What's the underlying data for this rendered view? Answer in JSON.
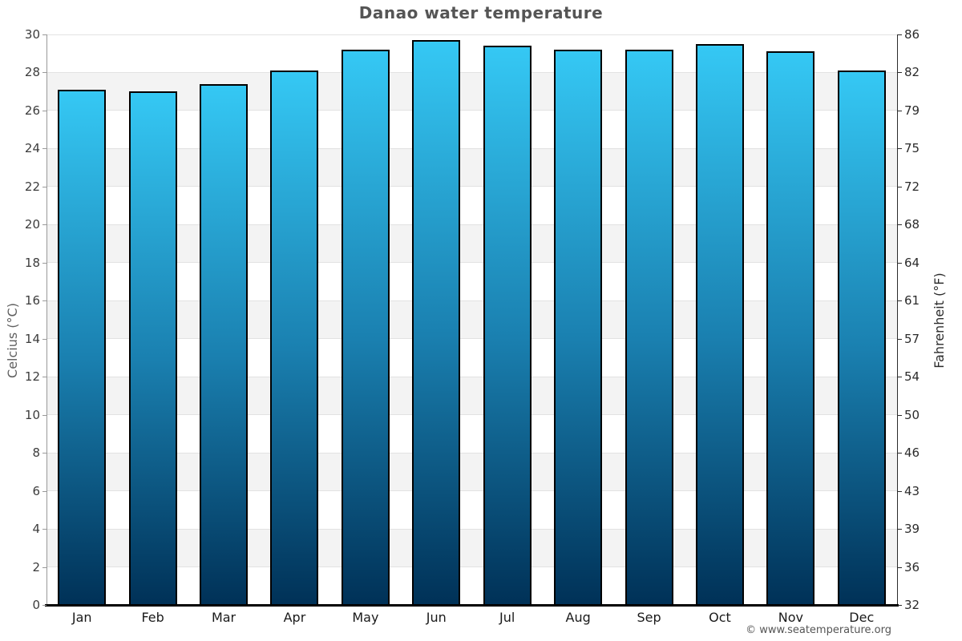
{
  "title": "Danao water temperature",
  "footer": "© www.seatemperature.org",
  "chart_data": {
    "type": "bar",
    "title": "Danao water temperature",
    "categories": [
      "Jan",
      "Feb",
      "Mar",
      "Apr",
      "May",
      "Jun",
      "Jul",
      "Aug",
      "Sep",
      "Oct",
      "Nov",
      "Dec"
    ],
    "values": [
      27.1,
      27.0,
      27.4,
      28.1,
      29.2,
      29.7,
      29.4,
      29.2,
      29.2,
      29.5,
      29.1,
      28.1
    ],
    "ylabel_left": "Celcius (°C)",
    "ylabel_right": "Fahrenheit (°F)",
    "ylim_celsius": [
      0,
      30
    ],
    "yticks_celsius": [
      0,
      2,
      4,
      6,
      8,
      10,
      12,
      14,
      16,
      18,
      20,
      22,
      24,
      26,
      28,
      30
    ],
    "yticks_fahrenheit": [
      "32",
      "36",
      "39",
      "43",
      "46",
      "50",
      "54",
      "57",
      "61",
      "64",
      "68",
      "72",
      "75",
      "79",
      "82",
      "86"
    ],
    "grid": "horizontal-bands",
    "legend": "none",
    "colors": {
      "bar_top": "#35c8f4",
      "bar_mid": "#1a80b0",
      "bar_bottom": "#003157",
      "bar_stroke": "#000000",
      "band_gray": "#f3f3f3",
      "band_white": "#ffffff",
      "grid_line": "#e2e2e2",
      "title_text": "#555555"
    }
  }
}
